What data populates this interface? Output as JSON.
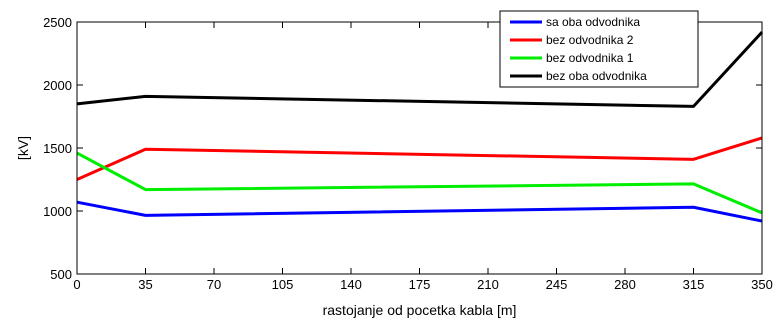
{
  "chart_data": {
    "type": "line",
    "xlabel": "rastojanje od pocetka kabla [m]",
    "ylabel": "[kV]",
    "xlim": [
      0,
      350
    ],
    "ylim": [
      500,
      2500
    ],
    "xticks": [
      0,
      35,
      70,
      105,
      140,
      175,
      210,
      245,
      280,
      315,
      350
    ],
    "yticks": [
      500,
      1000,
      1500,
      2000,
      2500
    ],
    "grid": false,
    "legend_position": "top-right",
    "x": [
      0,
      35,
      315,
      350
    ],
    "series": [
      {
        "name": "sa oba odvodnika",
        "color": "#0000ff",
        "values": [
          1070,
          965,
          1030,
          920
        ]
      },
      {
        "name": "bez odvodnika 2",
        "color": "#ff0000",
        "values": [
          1250,
          1490,
          1410,
          1580
        ]
      },
      {
        "name": "bez odvodnika 1",
        "color": "#00ee00",
        "values": [
          1460,
          1170,
          1215,
          985
        ]
      },
      {
        "name": "bez oba odvodnika",
        "color": "#000000",
        "values": [
          1850,
          1910,
          1830,
          2420
        ]
      }
    ]
  }
}
